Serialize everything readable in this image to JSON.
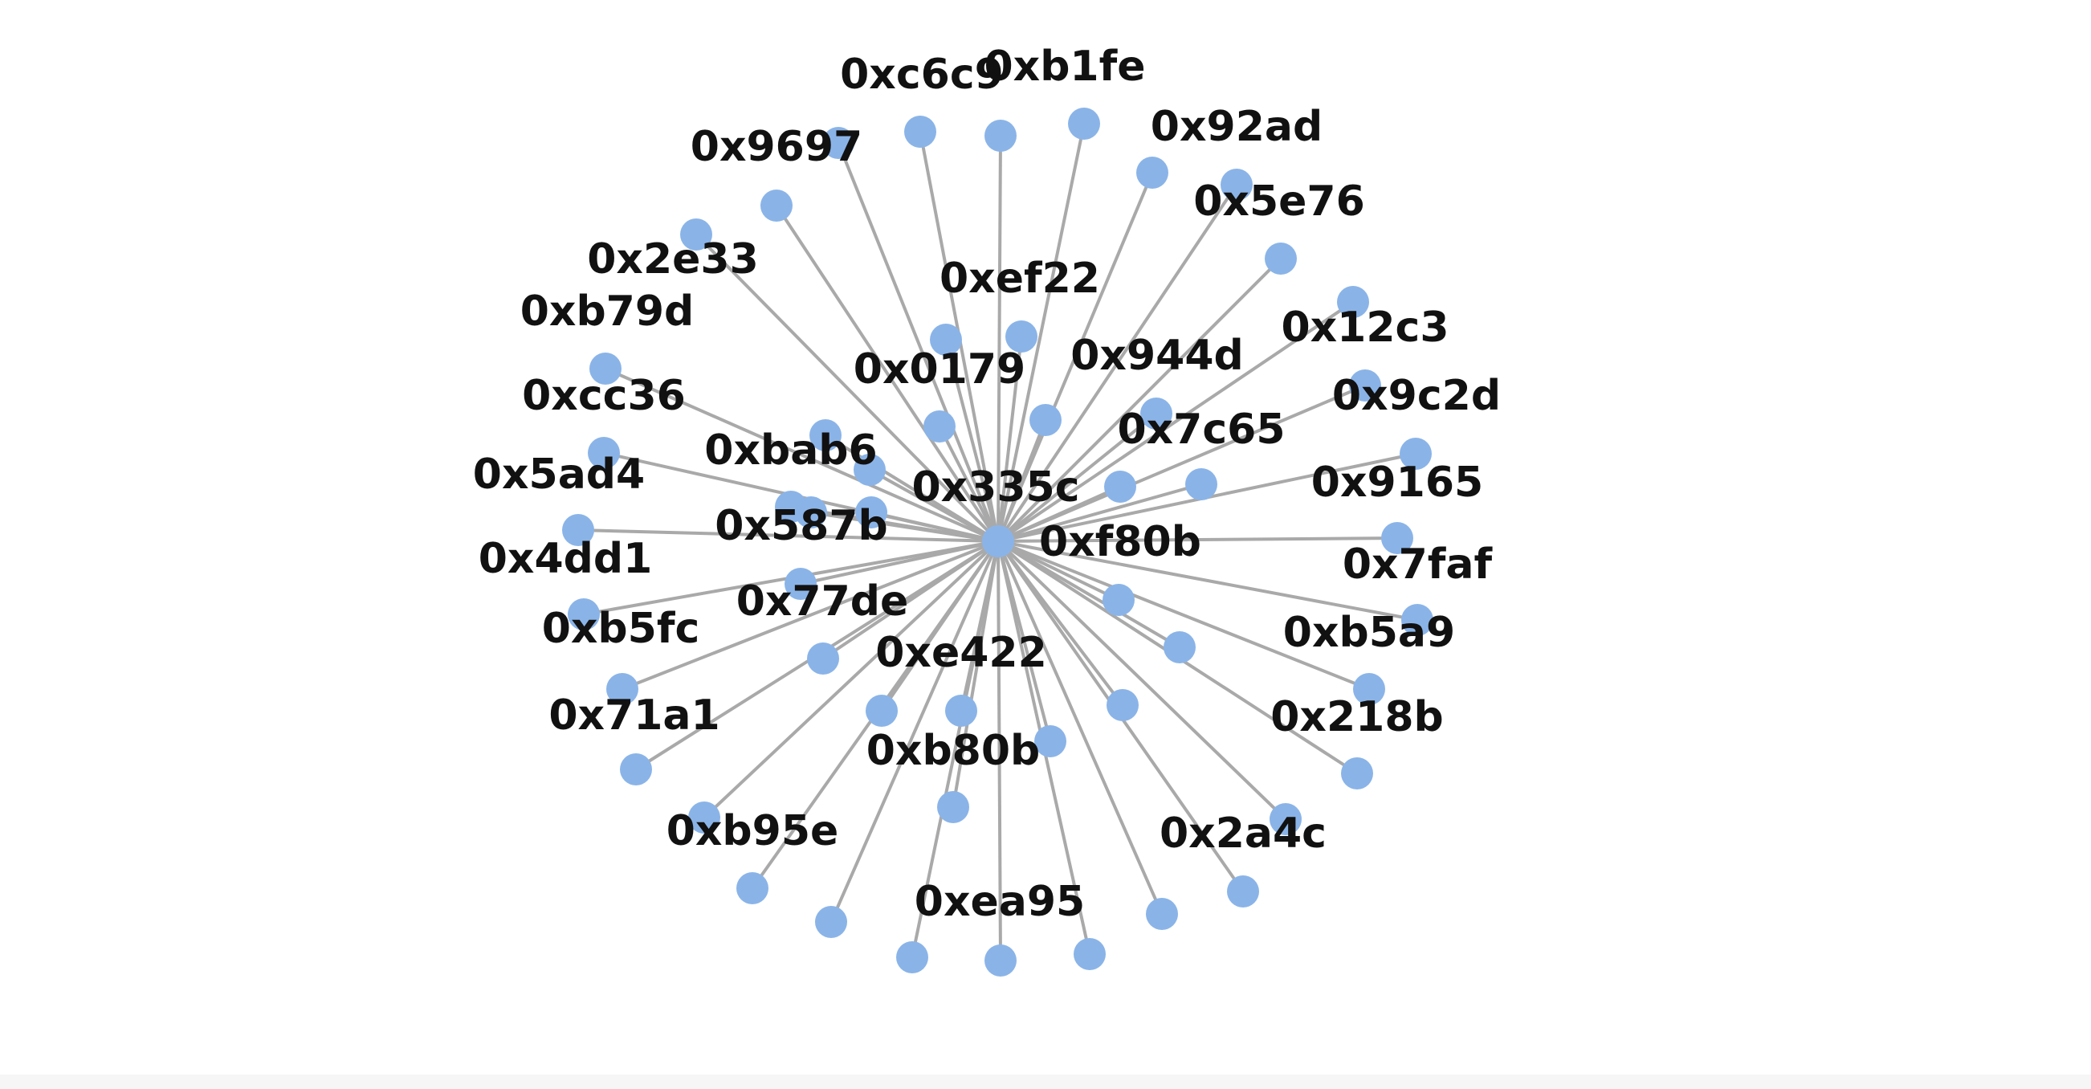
{
  "graph": {
    "center": {
      "id": "hub",
      "label": "0x335c"
    },
    "nodes": [
      {
        "id": "n1",
        "label": "0xc6c9"
      },
      {
        "id": "n2",
        "label": "0xb1fe"
      },
      {
        "id": "n3",
        "label": "0x92ad"
      },
      {
        "id": "n4",
        "label": "0x9697"
      },
      {
        "id": "n5",
        "label": "0x5e76"
      },
      {
        "id": "n6",
        "label": "0x2e33"
      },
      {
        "id": "n7",
        "label": "0xef22"
      },
      {
        "id": "n8",
        "label": "0xb79d"
      },
      {
        "id": "n9",
        "label": "0x12c3"
      },
      {
        "id": "n10",
        "label": "0x944d"
      },
      {
        "id": "n11",
        "label": "0x0179"
      },
      {
        "id": "n12",
        "label": "0xcc36"
      },
      {
        "id": "n13",
        "label": "0x9c2d"
      },
      {
        "id": "n14",
        "label": "0x7c65"
      },
      {
        "id": "n15",
        "label": "0xbab6"
      },
      {
        "id": "n16",
        "label": "0x5ad4"
      },
      {
        "id": "n17",
        "label": "0x9165"
      },
      {
        "id": "n18",
        "label": "0x587b"
      },
      {
        "id": "n19",
        "label": "0xf80b"
      },
      {
        "id": "n20",
        "label": "0x4dd1"
      },
      {
        "id": "n21",
        "label": "0x7faf"
      },
      {
        "id": "n22",
        "label": "0x77de"
      },
      {
        "id": "n23",
        "label": "0xb5fc"
      },
      {
        "id": "n24",
        "label": "0xb5a9"
      },
      {
        "id": "n25",
        "label": "0xe422"
      },
      {
        "id": "n26",
        "label": "0x71a1"
      },
      {
        "id": "n27",
        "label": "0x218b"
      },
      {
        "id": "n28",
        "label": "0xb80b"
      },
      {
        "id": "n29",
        "label": "0xb95e"
      },
      {
        "id": "n30",
        "label": "0x2a4c"
      },
      {
        "id": "n31",
        "label": "0xea95"
      },
      {
        "id": "u1",
        "label": ""
      },
      {
        "id": "u2",
        "label": ""
      },
      {
        "id": "u3",
        "label": ""
      },
      {
        "id": "u4",
        "label": ""
      },
      {
        "id": "u5",
        "label": ""
      },
      {
        "id": "u6",
        "label": ""
      },
      {
        "id": "u7",
        "label": ""
      },
      {
        "id": "u8",
        "label": ""
      },
      {
        "id": "u9",
        "label": ""
      },
      {
        "id": "u10",
        "label": ""
      },
      {
        "id": "u11",
        "label": ""
      },
      {
        "id": "u12",
        "label": ""
      },
      {
        "id": "u13",
        "label": ""
      },
      {
        "id": "u14",
        "label": ""
      },
      {
        "id": "u15",
        "label": ""
      },
      {
        "id": "u16",
        "label": ""
      },
      {
        "id": "u17",
        "label": ""
      },
      {
        "id": "u18",
        "label": ""
      },
      {
        "id": "u19",
        "label": ""
      },
      {
        "id": "u20",
        "label": ""
      },
      {
        "id": "u21",
        "label": ""
      }
    ],
    "colors": {
      "node": "#8ab4e8",
      "edge": "#a9a9a9",
      "label": "#111111"
    }
  }
}
